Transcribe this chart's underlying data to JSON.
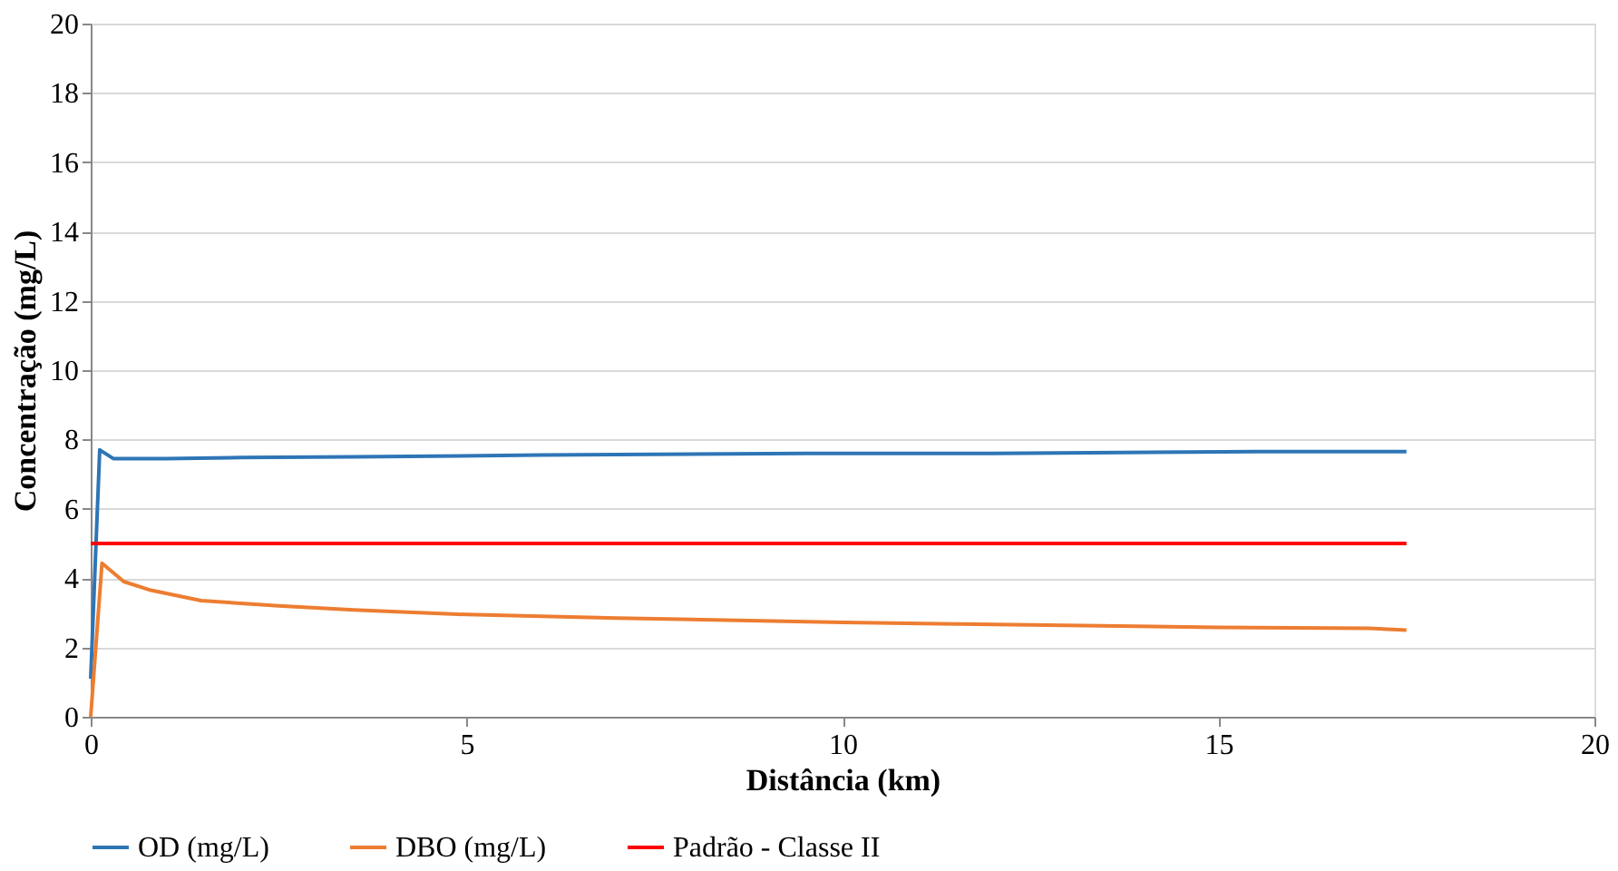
{
  "chart_data": {
    "type": "line",
    "xlabel": "Distância (km)",
    "ylabel": "Concentração (mg/L)",
    "xlim": [
      0,
      20
    ],
    "xticks": [
      0,
      5,
      10,
      15,
      20
    ],
    "ylim": [
      0,
      20
    ],
    "yticks": [
      0,
      2,
      4,
      6,
      8,
      10,
      12,
      14,
      16,
      18,
      20
    ],
    "grid": "y",
    "legend": "bottom",
    "line_style": "solid",
    "marker": "none",
    "series": [
      {
        "name": "OD (mg/L)",
        "color": "#2e75b6",
        "x": [
          0,
          0.12,
          0.3,
          1,
          2,
          3.5,
          6,
          9.5,
          12,
          15.5,
          17.5
        ],
        "values": [
          1.1,
          7.7,
          7.45,
          7.45,
          7.48,
          7.5,
          7.55,
          7.6,
          7.6,
          7.65,
          7.65
        ]
      },
      {
        "name": "DBO (mg/L)",
        "color": "#ed7d31",
        "x": [
          0,
          0.15,
          0.44,
          0.8,
          1.47,
          2.5,
          3.5,
          5,
          7,
          10,
          12.5,
          15,
          17,
          17.5
        ],
        "values": [
          0,
          4.43,
          3.9,
          3.65,
          3.35,
          3.2,
          3.08,
          2.95,
          2.85,
          2.72,
          2.65,
          2.58,
          2.55,
          2.5
        ]
      },
      {
        "name": "Padrão - Classe II",
        "color": "#ff0000",
        "x": [
          0,
          17.5
        ],
        "values": [
          5,
          5
        ]
      }
    ]
  }
}
